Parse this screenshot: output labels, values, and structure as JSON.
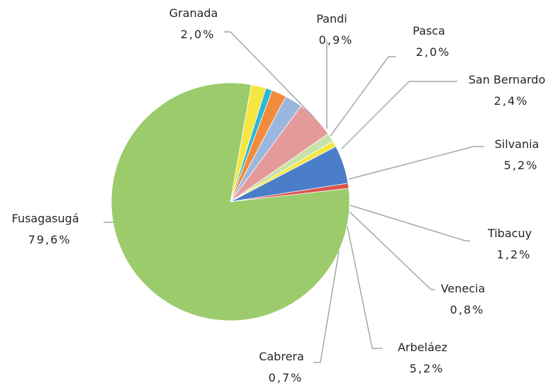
{
  "chart_data": {
    "type": "pie",
    "slices": [
      {
        "label": "Pandi",
        "value_text": "0,9%",
        "value": 0.9,
        "color": "#2bb7d6"
      },
      {
        "label": "Pasca",
        "value_text": "2,0%",
        "value": 2.0,
        "color": "#f28c3c"
      },
      {
        "label": "San Bernardo",
        "value_text": "2,4%",
        "value": 2.4,
        "color": "#9bb7e0"
      },
      {
        "label": "Silvania",
        "value_text": "5,2%",
        "value": 5.2,
        "color": "#e59a9a"
      },
      {
        "label": "Tibacuy",
        "value_text": "1,2%",
        "value": 1.2,
        "color": "#c9e2a8"
      },
      {
        "label": "Venecia",
        "value_text": "0,8%",
        "value": 0.8,
        "color": "#f5e642"
      },
      {
        "label": "Arbeláez",
        "value_text": "5,2%",
        "value": 5.2,
        "color": "#4a7ec8"
      },
      {
        "label": "Cabrera",
        "value_text": "0,7%",
        "value": 0.7,
        "color": "#d9534f"
      },
      {
        "label": "Fusagasugá",
        "value_text": "79,6%",
        "value": 79.6,
        "color": "#9bcb6a"
      },
      {
        "label": "Granada",
        "value_text": "2,0%",
        "value": 2.0,
        "color": "#f5e642"
      }
    ]
  }
}
